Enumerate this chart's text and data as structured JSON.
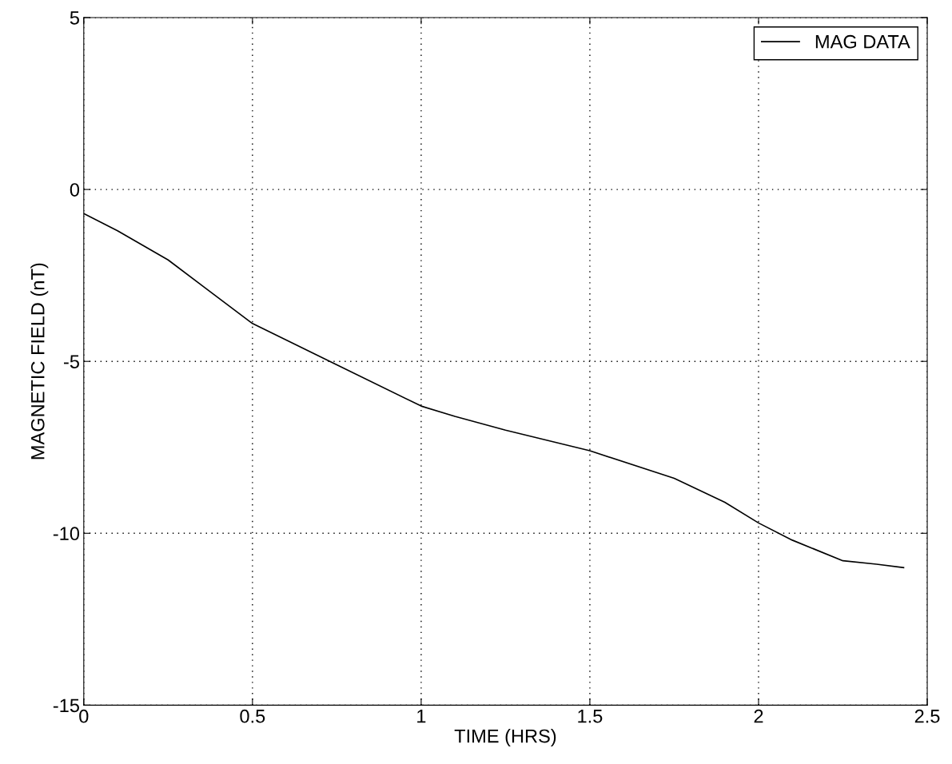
{
  "chart_data": {
    "type": "line",
    "xlabel": "TIME (HRS)",
    "ylabel": "MAGNETIC FIELD (nT)",
    "xlim": [
      0,
      2.5
    ],
    "ylim": [
      -15,
      5
    ],
    "xticks": [
      0,
      0.5,
      1,
      1.5,
      2,
      2.5
    ],
    "yticks": [
      -15,
      -10,
      -5,
      0,
      5
    ],
    "grid": true,
    "legend": "top right",
    "line_style": "solid",
    "marker": "none",
    "series": [
      {
        "name": "MAG DATA",
        "color": "#000000",
        "x": [
          0,
          0.1,
          0.25,
          0.5,
          0.75,
          1,
          1.1,
          1.25,
          1.5,
          1.75,
          1.9,
          2,
          2.1,
          2.25,
          2.35,
          2.43
        ],
        "values": [
          -0.7,
          -1.2,
          -2.05,
          -3.9,
          -5.1,
          -6.3,
          -6.6,
          -7.0,
          -7.6,
          -8.4,
          -9.1,
          -9.7,
          -10.2,
          -10.8,
          -10.9,
          -11.0
        ]
      }
    ]
  }
}
